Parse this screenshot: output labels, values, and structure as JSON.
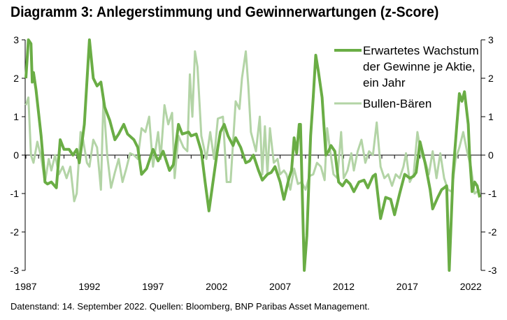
{
  "title": "Diagramm 3: Anlegerstimmung und Gewinnerwartungen (z-Score)",
  "footnote": "Datenstand: 14. September 2022. Quellen: Bloomberg, BNP Paribas Asset Management.",
  "chart_data": {
    "type": "line",
    "title": "Diagramm 3: Anlegerstimmung und Gewinnerwartungen (z-Score)",
    "xlabel": "",
    "ylabel": "",
    "xlim": [
      1987,
      2022.7
    ],
    "ylim": [
      -3,
      3
    ],
    "x_ticks": [
      "1987",
      "1992",
      "1997",
      "2002",
      "2007",
      "2012",
      "2017",
      "2022"
    ],
    "y_ticks": [
      "3",
      "2",
      "1",
      "0",
      "-1",
      "-2",
      "-3"
    ],
    "grid": false,
    "dual_y_axis_same_scale": true,
    "legend_position": "top-right",
    "series": [
      {
        "name": "Erwartetes Wachstum der Gewinne je Aktie, ein Jahr",
        "legend_lines": [
          "Erwartetes Wachstum",
          "der Gewinne je Aktie,",
          "ein Jahr"
        ],
        "color": "#6aad45",
        "points": [
          [
            1987.0,
            2.0
          ],
          [
            1987.2,
            3.0
          ],
          [
            1987.4,
            2.9
          ],
          [
            1987.5,
            1.9
          ],
          [
            1987.6,
            2.15
          ],
          [
            1987.8,
            1.7
          ],
          [
            1988.2,
            0.5
          ],
          [
            1988.5,
            -0.7
          ],
          [
            1988.7,
            -0.75
          ],
          [
            1989.0,
            -0.7
          ],
          [
            1989.4,
            -0.85
          ],
          [
            1989.7,
            0.4
          ],
          [
            1990.0,
            0.15
          ],
          [
            1990.4,
            0.15
          ],
          [
            1990.7,
            0.0
          ],
          [
            1991.0,
            0.15
          ],
          [
            1991.2,
            -0.2
          ],
          [
            1991.6,
            0.8
          ],
          [
            1992.0,
            3.0
          ],
          [
            1992.3,
            2.0
          ],
          [
            1992.6,
            1.8
          ],
          [
            1992.9,
            1.9
          ],
          [
            1993.2,
            1.25
          ],
          [
            1993.6,
            0.9
          ],
          [
            1994.0,
            0.4
          ],
          [
            1994.3,
            0.55
          ],
          [
            1994.7,
            0.8
          ],
          [
            1995.0,
            0.55
          ],
          [
            1995.5,
            0.4
          ],
          [
            1995.8,
            0.2
          ],
          [
            1996.1,
            -0.5
          ],
          [
            1996.5,
            -0.35
          ],
          [
            1997.0,
            0.15
          ],
          [
            1997.4,
            -0.15
          ],
          [
            1997.8,
            0.1
          ],
          [
            1998.3,
            -0.4
          ],
          [
            1998.6,
            -0.25
          ],
          [
            1999.0,
            0.8
          ],
          [
            1999.3,
            0.55
          ],
          [
            1999.8,
            0.6
          ],
          [
            2000.0,
            0.5
          ],
          [
            2000.4,
            0.55
          ],
          [
            2000.8,
            0.1
          ],
          [
            2001.1,
            -0.7
          ],
          [
            2001.4,
            -1.45
          ],
          [
            2001.8,
            -0.5
          ],
          [
            2002.1,
            0.2
          ],
          [
            2002.3,
            0.6
          ],
          [
            2002.6,
            0.8
          ],
          [
            2002.9,
            0.5
          ],
          [
            2003.3,
            0.25
          ],
          [
            2003.5,
            0.45
          ],
          [
            2003.9,
            0.2
          ],
          [
            2004.3,
            -0.2
          ],
          [
            2004.6,
            -0.15
          ],
          [
            2004.9,
            0.0
          ],
          [
            2005.3,
            -0.4
          ],
          [
            2005.6,
            -0.65
          ],
          [
            2006.0,
            -0.5
          ],
          [
            2006.3,
            -0.45
          ],
          [
            2006.6,
            -0.3
          ],
          [
            2007.0,
            -0.7
          ],
          [
            2007.3,
            -1.15
          ],
          [
            2007.7,
            -0.6
          ],
          [
            2007.9,
            -0.4
          ],
          [
            2008.1,
            0.45
          ],
          [
            2008.3,
            0.05
          ],
          [
            2008.5,
            0.8
          ],
          [
            2008.6,
            0.8
          ],
          [
            2008.9,
            -3.0
          ],
          [
            2009.1,
            -2.1
          ],
          [
            2009.4,
            0.5
          ],
          [
            2009.6,
            1.5
          ],
          [
            2009.8,
            2.6
          ],
          [
            2010.0,
            2.2
          ],
          [
            2010.3,
            1.5
          ],
          [
            2010.6,
            0.0
          ],
          [
            2010.8,
            0.1
          ],
          [
            2011.0,
            0.25
          ],
          [
            2011.3,
            0.1
          ],
          [
            2011.6,
            -0.7
          ],
          [
            2011.9,
            -0.8
          ],
          [
            2012.2,
            -0.65
          ],
          [
            2012.5,
            -0.75
          ],
          [
            2012.8,
            -0.95
          ],
          [
            2013.2,
            -0.7
          ],
          [
            2013.6,
            -0.65
          ],
          [
            2013.9,
            -0.85
          ],
          [
            2014.3,
            -0.55
          ],
          [
            2014.5,
            -0.5
          ],
          [
            2014.9,
            -1.65
          ],
          [
            2015.3,
            -1.1
          ],
          [
            2015.7,
            -1.15
          ],
          [
            2016.0,
            -1.55
          ],
          [
            2016.4,
            -1.0
          ],
          [
            2016.8,
            -0.5
          ],
          [
            2017.2,
            -0.6
          ],
          [
            2017.5,
            -0.55
          ],
          [
            2017.7,
            -0.45
          ],
          [
            2018.0,
            0.35
          ],
          [
            2018.4,
            -0.2
          ],
          [
            2018.8,
            -0.9
          ],
          [
            2019.0,
            -1.4
          ],
          [
            2019.4,
            -1.1
          ],
          [
            2019.7,
            -0.9
          ],
          [
            2019.9,
            -0.85
          ],
          [
            2020.1,
            -0.8
          ],
          [
            2020.3,
            -3.0
          ],
          [
            2020.6,
            -0.5
          ],
          [
            2020.9,
            0.8
          ],
          [
            2021.1,
            1.6
          ],
          [
            2021.3,
            1.4
          ],
          [
            2021.5,
            1.65
          ],
          [
            2021.8,
            0.8
          ],
          [
            2021.9,
            0.0
          ],
          [
            2022.1,
            -0.95
          ],
          [
            2022.3,
            -0.7
          ],
          [
            2022.5,
            -0.8
          ],
          [
            2022.7,
            -1.1
          ]
        ]
      },
      {
        "name": "Bullen-Bären",
        "legend_lines": [
          "Bullen-Bären"
        ],
        "color": "#b3d4a6",
        "points": [
          [
            1987.0,
            1.3
          ],
          [
            1987.2,
            1.5
          ],
          [
            1987.4,
            0.0
          ],
          [
            1987.6,
            -0.2
          ],
          [
            1987.9,
            0.35
          ],
          [
            1988.2,
            -0.05
          ],
          [
            1988.5,
            -0.7
          ],
          [
            1988.8,
            -0.1
          ],
          [
            1989.0,
            -0.4
          ],
          [
            1989.3,
            0.0
          ],
          [
            1989.6,
            -0.5
          ],
          [
            1989.9,
            -0.3
          ],
          [
            1990.2,
            -0.6
          ],
          [
            1990.5,
            -0.3
          ],
          [
            1990.8,
            -1.2
          ],
          [
            1991.0,
            -1.0
          ],
          [
            1991.3,
            0.6
          ],
          [
            1991.5,
            0.4
          ],
          [
            1991.8,
            -0.2
          ],
          [
            1992.0,
            -0.3
          ],
          [
            1992.3,
            0.4
          ],
          [
            1992.6,
            0.2
          ],
          [
            1992.9,
            -0.9
          ],
          [
            1993.1,
            1.45
          ],
          [
            1993.4,
            0.0
          ],
          [
            1993.7,
            -0.85
          ],
          [
            1994.0,
            -0.45
          ],
          [
            1994.3,
            -0.1
          ],
          [
            1994.6,
            -0.7
          ],
          [
            1994.9,
            -0.35
          ],
          [
            1995.2,
            0.05
          ],
          [
            1995.5,
            0.0
          ],
          [
            1995.8,
            -0.1
          ],
          [
            1996.1,
            0.7
          ],
          [
            1996.4,
            0.6
          ],
          [
            1996.7,
            1.0
          ],
          [
            1997.0,
            -0.3
          ],
          [
            1997.4,
            0.6
          ],
          [
            1997.6,
            -0.1
          ],
          [
            1997.9,
            1.3
          ],
          [
            1998.2,
            0.8
          ],
          [
            1998.5,
            1.1
          ],
          [
            1998.7,
            -0.6
          ],
          [
            1999.0,
            0.5
          ],
          [
            1999.4,
            0.2
          ],
          [
            1999.7,
            0.1
          ],
          [
            1999.9,
            2.1
          ],
          [
            2000.1,
            1.0
          ],
          [
            2000.3,
            2.7
          ],
          [
            2000.5,
            2.3
          ],
          [
            2000.8,
            0.5
          ],
          [
            2001.2,
            -0.1
          ],
          [
            2001.5,
            0.6
          ],
          [
            2001.8,
            -0.1
          ],
          [
            2002.1,
            0.95
          ],
          [
            2002.5,
            1.0
          ],
          [
            2002.8,
            -0.7
          ],
          [
            2003.1,
            -0.7
          ],
          [
            2003.5,
            1.4
          ],
          [
            2003.8,
            1.2
          ],
          [
            2004.0,
            2.0
          ],
          [
            2004.3,
            2.7
          ],
          [
            2004.5,
            1.8
          ],
          [
            2004.7,
            0.6
          ],
          [
            2004.9,
            0.35
          ],
          [
            2005.1,
            0.1
          ],
          [
            2005.4,
            1.0
          ],
          [
            2005.6,
            -0.5
          ],
          [
            2005.8,
            0.75
          ],
          [
            2006.0,
            -0.5
          ],
          [
            2006.2,
            0.7
          ],
          [
            2006.5,
            -0.2
          ],
          [
            2006.8,
            -0.1
          ],
          [
            2007.0,
            -0.5
          ],
          [
            2007.3,
            -0.4
          ],
          [
            2007.5,
            -0.5
          ],
          [
            2007.8,
            -0.9
          ],
          [
            2008.1,
            -0.35
          ],
          [
            2008.4,
            -0.75
          ],
          [
            2008.7,
            -0.7
          ],
          [
            2009.0,
            -0.9
          ],
          [
            2009.3,
            -0.55
          ],
          [
            2009.6,
            -0.5
          ],
          [
            2009.9,
            -0.2
          ],
          [
            2010.2,
            -0.3
          ],
          [
            2010.5,
            -0.65
          ],
          [
            2010.7,
            0.7
          ],
          [
            2010.9,
            0.2
          ],
          [
            2011.2,
            -0.5
          ],
          [
            2011.5,
            -0.6
          ],
          [
            2011.8,
            0.6
          ],
          [
            2012.0,
            -0.6
          ],
          [
            2012.3,
            -0.4
          ],
          [
            2012.6,
            0.05
          ],
          [
            2012.8,
            -0.4
          ],
          [
            2013.1,
            0.1
          ],
          [
            2013.4,
            0.4
          ],
          [
            2013.7,
            -0.2
          ],
          [
            2014.0,
            0.1
          ],
          [
            2014.3,
            0.0
          ],
          [
            2014.6,
            0.85
          ],
          [
            2014.9,
            -0.3
          ],
          [
            2015.2,
            -0.6
          ],
          [
            2015.5,
            -0.5
          ],
          [
            2015.8,
            -0.8
          ],
          [
            2016.1,
            -0.5
          ],
          [
            2016.4,
            -0.6
          ],
          [
            2016.7,
            -0.3
          ],
          [
            2016.9,
            0.05
          ],
          [
            2017.2,
            -0.7
          ],
          [
            2017.5,
            -0.5
          ],
          [
            2017.8,
            0.6
          ],
          [
            2018.1,
            0.0
          ],
          [
            2018.4,
            -0.15
          ],
          [
            2018.7,
            -0.5
          ],
          [
            2019.0,
            0.1
          ],
          [
            2019.3,
            -0.6
          ],
          [
            2019.6,
            0.05
          ],
          [
            2019.9,
            -0.6
          ],
          [
            2020.2,
            -0.9
          ],
          [
            2020.5,
            -0.95
          ],
          [
            2020.8,
            -0.1
          ],
          [
            2021.1,
            0.2
          ],
          [
            2021.4,
            0.6
          ],
          [
            2021.7,
            0.1
          ],
          [
            2022.0,
            -0.3
          ],
          [
            2022.3,
            -1.0
          ],
          [
            2022.7,
            -0.9
          ]
        ]
      }
    ]
  }
}
